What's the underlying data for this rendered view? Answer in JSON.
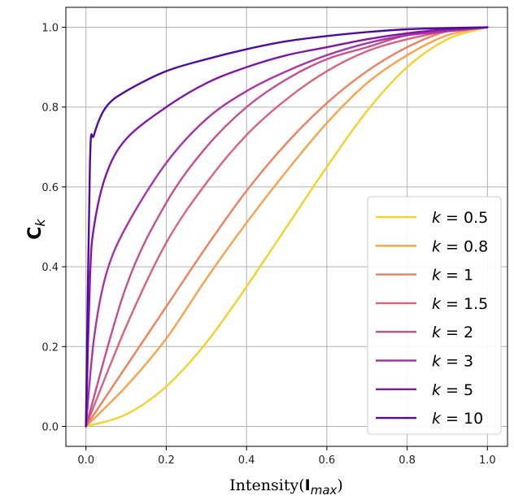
{
  "chart_data": {
    "type": "line",
    "title": "",
    "xlabel": {
      "main": "Intensity(",
      "bold": "I",
      "sub": "max",
      "close": ")"
    },
    "ylabel": {
      "main": "C",
      "sub": "k"
    },
    "xlim": [
      -0.05,
      1.05
    ],
    "ylim": [
      -0.05,
      1.05
    ],
    "xticks": [
      "0.0",
      "0.2",
      "0.4",
      "0.6",
      "0.8",
      "1.0"
    ],
    "yticks": [
      "0.0",
      "0.2",
      "0.4",
      "0.6",
      "0.8",
      "1.0"
    ],
    "grid": true,
    "legend_position": "lower-right",
    "legend_prefix": "k",
    "series": [
      {
        "name": "0.5",
        "color": "#f5d12b",
        "x": [
          0,
          0.1,
          0.2,
          0.3,
          0.4,
          0.5,
          0.6,
          0.7,
          0.8,
          0.9,
          1.0
        ],
        "y": [
          0,
          0.03,
          0.1,
          0.21,
          0.35,
          0.5,
          0.65,
          0.79,
          0.9,
          0.97,
          1.0
        ]
      },
      {
        "name": "0.8",
        "color": "#fba04b",
        "x": [
          0,
          0.1,
          0.2,
          0.3,
          0.4,
          0.5,
          0.6,
          0.7,
          0.8,
          0.9,
          1.0
        ],
        "y": [
          0,
          0.1,
          0.22,
          0.37,
          0.51,
          0.64,
          0.76,
          0.86,
          0.93,
          0.98,
          1.0
        ]
      },
      {
        "name": "1",
        "color": "#f07f5d",
        "x": [
          0,
          0.1,
          0.2,
          0.3,
          0.4,
          0.5,
          0.6,
          0.7,
          0.8,
          0.9,
          1.0
        ],
        "y": [
          0,
          0.15,
          0.3,
          0.45,
          0.59,
          0.71,
          0.81,
          0.89,
          0.95,
          0.99,
          1.0
        ]
      },
      {
        "name": "1.5",
        "color": "#d8647a",
        "x": [
          0,
          0.1,
          0.2,
          0.3,
          0.4,
          0.5,
          0.6,
          0.7,
          0.8,
          0.9,
          1.0
        ],
        "y": [
          0,
          0.25,
          0.46,
          0.61,
          0.73,
          0.82,
          0.89,
          0.94,
          0.97,
          0.99,
          1.0
        ]
      },
      {
        "name": "2",
        "color": "#c54f8f",
        "x": [
          0,
          0.1,
          0.2,
          0.3,
          0.4,
          0.5,
          0.6,
          0.7,
          0.8,
          0.9,
          1.0
        ],
        "y": [
          0,
          0.35,
          0.56,
          0.7,
          0.8,
          0.87,
          0.92,
          0.95,
          0.98,
          0.99,
          1.0
        ]
      },
      {
        "name": "3",
        "color": "#a934a4",
        "x": [
          0,
          0.02,
          0.05,
          0.1,
          0.2,
          0.3,
          0.4,
          0.5,
          0.6,
          0.7,
          0.8,
          0.9,
          1.0
        ],
        "y": [
          0,
          0.22,
          0.38,
          0.5,
          0.66,
          0.77,
          0.84,
          0.89,
          0.93,
          0.96,
          0.98,
          0.99,
          1.0
        ]
      },
      {
        "name": "5",
        "color": "#8315a6",
        "x": [
          0,
          0.01,
          0.02,
          0.05,
          0.1,
          0.2,
          0.3,
          0.4,
          0.5,
          0.6,
          0.7,
          0.8,
          0.9,
          1.0
        ],
        "y": [
          0,
          0.37,
          0.5,
          0.63,
          0.72,
          0.8,
          0.86,
          0.9,
          0.93,
          0.95,
          0.97,
          0.985,
          0.995,
          1.0
        ]
      },
      {
        "name": "10",
        "color": "#500aa2",
        "x": [
          0,
          0.01,
          0.02,
          0.05,
          0.1,
          0.2,
          0.3,
          0.4,
          0.5,
          0.6,
          0.7,
          0.8,
          0.9,
          1.0
        ],
        "y": [
          0,
          0.66,
          0.73,
          0.8,
          0.84,
          0.89,
          0.92,
          0.945,
          0.965,
          0.978,
          0.988,
          0.995,
          0.998,
          1.0
        ]
      }
    ]
  }
}
